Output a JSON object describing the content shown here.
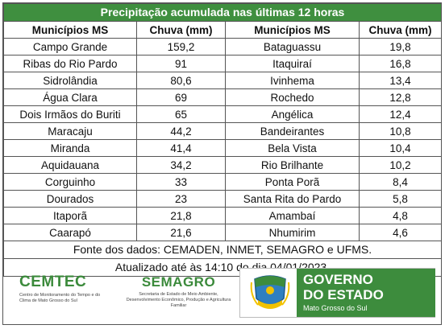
{
  "title": "Precipitação acumulada nas últimas 12 horas",
  "headers": [
    "Municípios MS",
    "Chuva (mm)",
    "Municípios MS",
    "Chuva (mm)"
  ],
  "rows": [
    {
      "m1": "Campo Grande",
      "v1": "159,2",
      "m2": "Bataguassu",
      "v2": "19,8"
    },
    {
      "m1": "Ribas do Rio Pardo",
      "v1": "91",
      "m2": "Itaquiraí",
      "v2": "16,8"
    },
    {
      "m1": "Sidrolândia",
      "v1": "80,6",
      "m2": "Ivinhema",
      "v2": "13,4"
    },
    {
      "m1": "Água Clara",
      "v1": "69",
      "m2": "Rochedo",
      "v2": "12,8"
    },
    {
      "m1": "Dois Irmãos do Buriti",
      "v1": "65",
      "m2": "Angélica",
      "v2": "12,4"
    },
    {
      "m1": "Maracaju",
      "v1": "44,2",
      "m2": "Bandeirantes",
      "v2": "10,8"
    },
    {
      "m1": "Miranda",
      "v1": "41,4",
      "m2": "Bela Vista",
      "v2": "10,4"
    },
    {
      "m1": "Aquidauana",
      "v1": "34,2",
      "m2": "Rio Brilhante",
      "v2": "10,2"
    },
    {
      "m1": "Corguinho",
      "v1": "33",
      "m2": "Ponta Porã",
      "v2": "8,4"
    },
    {
      "m1": "Dourados",
      "v1": "23",
      "m2": "Santa Rita do Pardo",
      "v2": "5,8"
    },
    {
      "m1": "Itaporã",
      "v1": "21,8",
      "m2": "Amambaí",
      "v2": "4,8"
    },
    {
      "m1": "Caarapó",
      "v1": "21,6",
      "m2": "Nhumirim",
      "v2": "4,6"
    }
  ],
  "source": "Fonte dos dados: CEMADEN, INMET, SEMAGRO e UFMS.",
  "updated": "Atualizado até às 14:10 do dia 04/01/2023.",
  "logos": {
    "cemtec_name": "CEMTEC",
    "cemtec_sub": "Centro de Monitoramento do Tempo e do Clima de Mato Grosso do Sul",
    "semagro_name": "SEMAGRO",
    "semagro_sub": "Secretaria de Estado de Meio Ambiente, Desenvolvimento Econômico, Produção e Agricultura Familiar",
    "gov_line1": "GOVERNO",
    "gov_line2": "DO ESTADO",
    "gov_line3": "Mato Grosso do Sul"
  },
  "colors": {
    "header_green": "#3f8f3f",
    "brand_green": "#3b8a3b"
  }
}
